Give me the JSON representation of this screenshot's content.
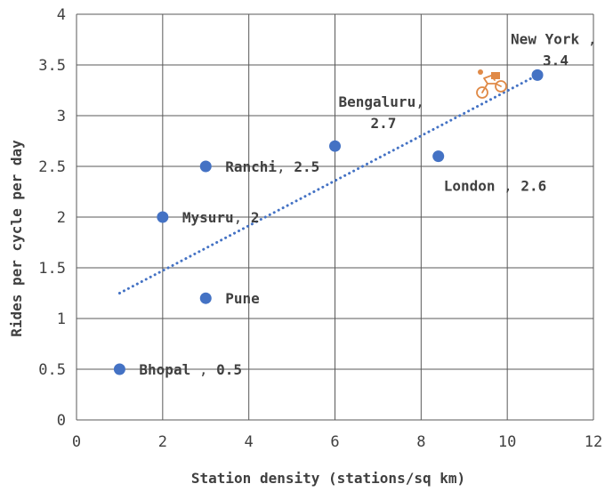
{
  "chart_data": {
    "type": "scatter",
    "xlabel": "Station density (stations/sq km)",
    "ylabel": "Rides per cycle per day",
    "xlim": [
      0,
      12
    ],
    "ylim": [
      0,
      4
    ],
    "x_ticks": [
      "0",
      "2",
      "4",
      "6",
      "8",
      "10",
      "12"
    ],
    "y_ticks": [
      "0",
      "0.5",
      "1",
      "1.5",
      "2",
      "2.5",
      "3",
      "3.5",
      "4"
    ],
    "grid": true,
    "trendline": {
      "style": "dotted",
      "from": [
        1,
        1.25
      ],
      "to": [
        10.7,
        3.4
      ]
    },
    "points": [
      {
        "x": 1,
        "y": 0.5,
        "label_name": "Bhopal",
        "label_value": "0.5"
      },
      {
        "x": 3,
        "y": 1.2,
        "label_name": "Pune",
        "label_value": ""
      },
      {
        "x": 2,
        "y": 2,
        "label_name": "Mysuru",
        "label_value": "2"
      },
      {
        "x": 3,
        "y": 2.5,
        "label_name": "Ranchi",
        "label_value": "2.5"
      },
      {
        "x": 6,
        "y": 2.7,
        "label_name": "Bengaluru",
        "label_value": "2.7"
      },
      {
        "x": 8.4,
        "y": 2.6,
        "label_name": "London",
        "label_value": "2.6"
      },
      {
        "x": 10.7,
        "y": 3.4,
        "label_name": "New York",
        "label_value": "3.4"
      }
    ],
    "colors": {
      "points": "#4472c4",
      "trendline": "#4472c4",
      "grid": "#595959",
      "icon": "#e08a47"
    },
    "icon": "cyclist-icon"
  }
}
